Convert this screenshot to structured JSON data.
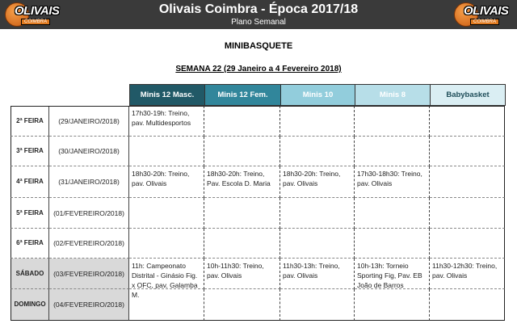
{
  "header": {
    "title": "Olivais Coimbra - Época 2017/18",
    "subtitle": "Plano Semanal",
    "logo_text": "OLIVAIS",
    "logo_sub": "COIMBRA"
  },
  "section_title": "MINIBASQUETE",
  "week_title": "SEMANA 22 (29 Janeiro a 4 Fevereiro 2018)",
  "columns": [
    {
      "label": "Minis 12 Masc.",
      "color": "#215967",
      "text": "#ffffff"
    },
    {
      "label": "Minis 12 Fem.",
      "color": "#31869b",
      "text": "#ffffff"
    },
    {
      "label": "Minis 10",
      "color": "#92cddc",
      "text": "#ffffff"
    },
    {
      "label": "Minis 8",
      "color": "#b7dee8",
      "text": "#ffffff"
    },
    {
      "label": "Babybasket",
      "color": "#daeef3",
      "text": "#1f4e5a"
    }
  ],
  "rows": [
    {
      "day": "2ª FEIRA",
      "date": "(29/JANEIRO/2018)",
      "weekend": false,
      "cells": [
        "17h30-19h: Treino, pav. Multidesportos",
        "",
        "",
        "",
        ""
      ]
    },
    {
      "day": "3ª FEIRA",
      "date": "(30/JANEIRO/2018)",
      "weekend": false,
      "cells": [
        "",
        "",
        "",
        "",
        ""
      ]
    },
    {
      "day": "4ª FEIRA",
      "date": "(31/JANEIRO/2018)",
      "weekend": false,
      "cells": [
        "18h30-20h: Treino, pav. Olivais",
        "18h30-20h: Treino, Pav. Escola D. Maria",
        "18h30-20h: Treino, pav. Olivais",
        "17h30-18h30: Treino, pav. Olivais",
        ""
      ]
    },
    {
      "day": "5ª FEIRA",
      "date": "(01/FEVEREIRO/2018)",
      "weekend": false,
      "cells": [
        "",
        "",
        "",
        "",
        ""
      ]
    },
    {
      "day": "6ª FEIRA",
      "date": "(02/FEVEREIRO/2018)",
      "weekend": false,
      "cells": [
        "",
        "",
        "",
        "",
        ""
      ]
    },
    {
      "day": "SÁBADO",
      "date": "(03/FEVEREIRO/2018)",
      "weekend": true,
      "cells": [
        "11h: Campeonato Distrital - Ginásio Fig. x OFC, pav. Galamba M.",
        "10h-11h30: Treino, pav. Olivais",
        "11h30-13h: Treino, pav. Olivais",
        "10h-13h: Torneio Sporting Fig, Pav. EB João de Barros",
        "11h30-12h30: Treino, pav. Olivais"
      ]
    },
    {
      "day": "DOMINGO",
      "date": "(04/FEVEREIRO/2018)",
      "weekend": true,
      "cells": [
        "",
        "",
        "",
        "",
        ""
      ]
    }
  ]
}
